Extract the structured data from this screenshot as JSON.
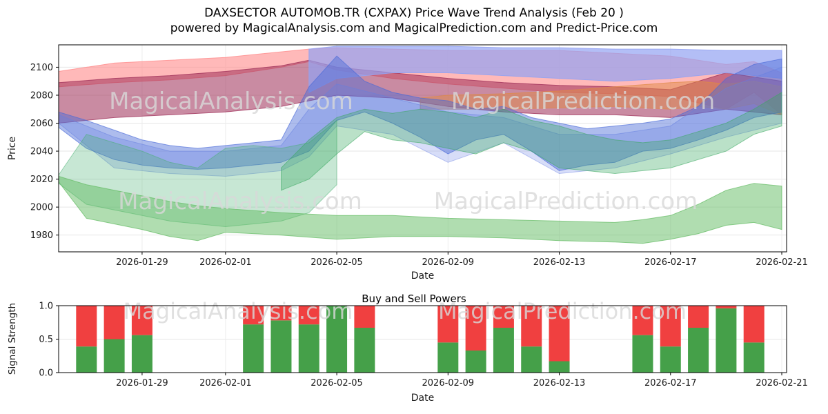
{
  "header": {
    "line1": "DAXSECTOR AUTOMOB.TR (CXPAX) Price Wave Trend Analysis (Feb 20 )",
    "line2": "powered by MagicalAnalysis.com and MagicalPrediction.com and Predict-Price.com"
  },
  "watermark": {
    "texts": [
      "MagicalAnalysis.com",
      "MagicalPrediction.com"
    ]
  },
  "chart_data": [
    {
      "type": "area",
      "title": "Price Wave Trend Analysis",
      "xlabel": "Date",
      "ylabel": "Price",
      "x_start_date": "2026-01-26",
      "x_range_days": [
        0,
        26
      ],
      "ylim": [
        1968,
        2116
      ],
      "y_ticks": [
        1980,
        2000,
        2020,
        2040,
        2060,
        2080,
        2100
      ],
      "x_ticks": [
        {
          "day": 3,
          "label": "2026-01-29"
        },
        {
          "day": 6,
          "label": "2026-02-01"
        },
        {
          "day": 10,
          "label": "2026-02-05"
        },
        {
          "day": 14,
          "label": "2026-02-09"
        },
        {
          "day": 18,
          "label": "2026-02-13"
        },
        {
          "day": 22,
          "label": "2026-02-17"
        },
        {
          "day": 26,
          "label": "2026-02-21"
        }
      ],
      "grid": true,
      "bands": [
        {
          "name": "red-top-band",
          "color": "#ff8a8a",
          "opacity": 0.6,
          "x": [
            0,
            2,
            4,
            6,
            8,
            9,
            10,
            12,
            14,
            16,
            18,
            20,
            22,
            24,
            25,
            26
          ],
          "hi": [
            2097,
            2103,
            2105,
            2107,
            2111,
            2113,
            2114,
            2113,
            2112,
            2112,
            2112,
            2110,
            2108,
            2102,
            2104,
            2096
          ],
          "lo": [
            2086,
            2089,
            2091,
            2094,
            2100,
            2104,
            2098,
            2092,
            2088,
            2085,
            2082,
            2081,
            2079,
            2070,
            2082,
            2066
          ]
        },
        {
          "name": "maroon-band",
          "color": "#9c2b55",
          "opacity": 0.55,
          "x": [
            0,
            2,
            4,
            6,
            8,
            9,
            10,
            12,
            14,
            16,
            18,
            20,
            22,
            24,
            26
          ],
          "hi": [
            2089,
            2092,
            2094,
            2097,
            2101,
            2105,
            2100,
            2096,
            2092,
            2089,
            2087,
            2086,
            2084,
            2096,
            2090
          ],
          "lo": [
            2060,
            2064,
            2066,
            2068,
            2072,
            2076,
            2080,
            2078,
            2072,
            2068,
            2066,
            2066,
            2064,
            2070,
            2066
          ]
        },
        {
          "name": "orange-band",
          "color": "#e08a45",
          "opacity": 0.5,
          "x": [
            13,
            14,
            16,
            18,
            20,
            22,
            23,
            24,
            25,
            26
          ],
          "hi": [
            2078,
            2080,
            2081,
            2083,
            2086,
            2089,
            2090,
            2088,
            2090,
            2086
          ],
          "lo": [
            2070,
            2070,
            2070,
            2071,
            2072,
            2070,
            2072,
            2070,
            2074,
            2066
          ]
        },
        {
          "name": "periwinkle-top-band",
          "color": "#93a3f2",
          "opacity": 0.7,
          "x": [
            9,
            10,
            11,
            12,
            14,
            16,
            18,
            20,
            22,
            24,
            26
          ],
          "hi": [
            2113,
            2115,
            2115,
            2115,
            2115,
            2114,
            2114,
            2113,
            2113,
            2112,
            2112
          ],
          "lo": [
            2082,
            2092,
            2094,
            2096,
            2096,
            2094,
            2092,
            2090,
            2092,
            2096,
            2092
          ]
        },
        {
          "name": "blue-light-band",
          "color": "#7b8fe8",
          "opacity": 0.3,
          "x": [
            0,
            2,
            4,
            6,
            8,
            9,
            10,
            12,
            14,
            16,
            18,
            20,
            22,
            24,
            26
          ],
          "hi": [
            2066,
            2050,
            2040,
            2040,
            2044,
            2070,
            2088,
            2078,
            2068,
            2064,
            2052,
            2052,
            2058,
            2085,
            2100
          ],
          "lo": [
            2060,
            2028,
            2024,
            2022,
            2026,
            2036,
            2058,
            2052,
            2032,
            2046,
            2024,
            2028,
            2038,
            2050,
            2060
          ]
        },
        {
          "name": "blue-main-band",
          "color": "#4a6ad8",
          "opacity": 0.45,
          "x": [
            0,
            1,
            2,
            3,
            4,
            5,
            6,
            7,
            8,
            9,
            10,
            11,
            12,
            13,
            14,
            15,
            16,
            17,
            18,
            19,
            20,
            21,
            22,
            23,
            24,
            25,
            26
          ],
          "hi": [
            2068,
            2062,
            2055,
            2048,
            2044,
            2042,
            2044,
            2046,
            2048,
            2086,
            2108,
            2090,
            2082,
            2078,
            2076,
            2070,
            2072,
            2064,
            2060,
            2056,
            2058,
            2060,
            2063,
            2072,
            2092,
            2102,
            2106
          ],
          "lo": [
            2057,
            2042,
            2034,
            2030,
            2028,
            2027,
            2028,
            2030,
            2032,
            2040,
            2062,
            2068,
            2060,
            2050,
            2038,
            2048,
            2052,
            2040,
            2026,
            2030,
            2032,
            2040,
            2042,
            2048,
            2055,
            2064,
            2068
          ]
        },
        {
          "name": "green-left-band",
          "color": "#46b070",
          "opacity": 0.3,
          "x": [
            0,
            1,
            2,
            3,
            4,
            5,
            6,
            7,
            8,
            9,
            10
          ],
          "hi": [
            2023,
            2052,
            2046,
            2040,
            2032,
            2028,
            2042,
            2044,
            2042,
            2046,
            2062
          ],
          "lo": [
            2017,
            2002,
            1998,
            1994,
            1990,
            1988,
            1986,
            1988,
            1990,
            1996,
            2016
          ]
        },
        {
          "name": "green-mid-band",
          "color": "#3aa860",
          "opacity": 0.35,
          "x": [
            8,
            9,
            10,
            11,
            12,
            13,
            14,
            15,
            16,
            17,
            18,
            19,
            20,
            21,
            22,
            23,
            24,
            25,
            26
          ],
          "hi": [
            2028,
            2048,
            2064,
            2070,
            2067,
            2070,
            2068,
            2064,
            2070,
            2062,
            2058,
            2052,
            2048,
            2046,
            2048,
            2054,
            2060,
            2070,
            2082
          ],
          "lo": [
            2012,
            2020,
            2038,
            2054,
            2048,
            2046,
            2042,
            2038,
            2046,
            2040,
            2028,
            2026,
            2024,
            2026,
            2028,
            2034,
            2040,
            2052,
            2058
          ]
        },
        {
          "name": "green-low-band",
          "color": "#62bb62",
          "opacity": 0.5,
          "x": [
            0,
            1,
            2,
            3,
            4,
            5,
            6,
            8,
            10,
            12,
            14,
            16,
            18,
            20,
            21,
            22,
            23,
            24,
            25,
            26
          ],
          "hi": [
            2022,
            2016,
            2012,
            2008,
            2004,
            2001,
            1999,
            1996,
            1994,
            1994,
            1992,
            1991,
            1990,
            1989,
            1991,
            1994,
            2002,
            2012,
            2017,
            2015
          ],
          "lo": [
            2018,
            1992,
            1988,
            1984,
            1979,
            1976,
            1982,
            1980,
            1977,
            1979,
            1979,
            1978,
            1976,
            1975,
            1974,
            1977,
            1981,
            1987,
            1989,
            1984
          ]
        }
      ]
    },
    {
      "type": "bar",
      "title": "Buy and Sell Powers",
      "xlabel": "Date",
      "ylabel": "Signal Strength",
      "ylim": [
        0,
        1.0
      ],
      "stack_total": 1.0,
      "colors": {
        "buy": "#45a049",
        "sell": "#f04040"
      },
      "y_ticks": [
        {
          "value": 0,
          "label": "0.0"
        },
        {
          "value": 0.5,
          "label": "0.5"
        },
        {
          "value": 1,
          "label": "1.0"
        }
      ],
      "x_ticks": [
        {
          "day": 3,
          "label": "2026-01-29"
        },
        {
          "day": 6,
          "label": "2026-02-01"
        },
        {
          "day": 10,
          "label": "2026-02-05"
        },
        {
          "day": 14,
          "label": "2026-02-09"
        },
        {
          "day": 18,
          "label": "2026-02-13"
        },
        {
          "day": 22,
          "label": "2026-02-17"
        },
        {
          "day": 26,
          "label": "2026-02-21"
        }
      ],
      "bars": [
        {
          "date": "2026-01-27",
          "day": 1,
          "buy": 0.39,
          "sell": 0.61
        },
        {
          "date": "2026-01-28",
          "day": 2,
          "buy": 0.5,
          "sell": 0.5
        },
        {
          "date": "2026-01-29",
          "day": 3,
          "buy": 0.56,
          "sell": 0.44
        },
        {
          "date": "2026-02-02",
          "day": 7,
          "buy": 0.72,
          "sell": 0.28
        },
        {
          "date": "2026-02-03",
          "day": 8,
          "buy": 0.78,
          "sell": 0.22
        },
        {
          "date": "2026-02-04",
          "day": 9,
          "buy": 0.72,
          "sell": 0.28
        },
        {
          "date": "2026-02-05",
          "day": 10,
          "buy": 1.0,
          "sell": 0.0
        },
        {
          "date": "2026-02-06",
          "day": 11,
          "buy": 0.67,
          "sell": 0.33
        },
        {
          "date": "2026-02-09",
          "day": 14,
          "buy": 0.45,
          "sell": 0.55
        },
        {
          "date": "2026-02-10",
          "day": 15,
          "buy": 0.33,
          "sell": 0.67
        },
        {
          "date": "2026-02-11",
          "day": 16,
          "buy": 0.67,
          "sell": 0.33
        },
        {
          "date": "2026-02-12",
          "day": 17,
          "buy": 0.39,
          "sell": 0.61
        },
        {
          "date": "2026-02-13",
          "day": 18,
          "buy": 0.17,
          "sell": 0.83
        },
        {
          "date": "2026-02-16",
          "day": 21,
          "buy": 0.56,
          "sell": 0.44
        },
        {
          "date": "2026-02-17",
          "day": 22,
          "buy": 0.39,
          "sell": 0.61
        },
        {
          "date": "2026-02-18",
          "day": 23,
          "buy": 0.67,
          "sell": 0.33
        },
        {
          "date": "2026-02-19",
          "day": 24,
          "buy": 0.96,
          "sell": 0.04
        },
        {
          "date": "2026-02-20",
          "day": 25,
          "buy": 0.45,
          "sell": 0.55
        }
      ]
    }
  ]
}
